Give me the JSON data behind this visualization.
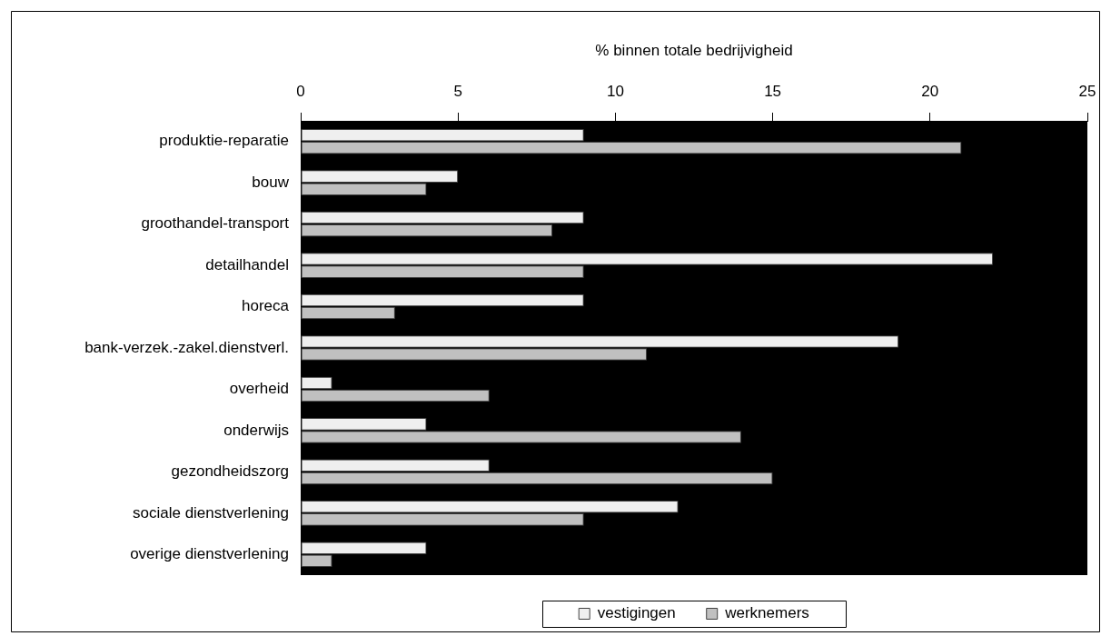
{
  "chart_data": {
    "type": "bar",
    "orientation": "horizontal",
    "xlabel": "% binnen totale bedrijvigheid",
    "categories": [
      "produktie-reparatie",
      "bouw",
      "groothandel-transport",
      "detailhandel",
      "horeca",
      "bank-verzek.-zakel.dienstverl.",
      "overheid",
      "onderwijs",
      "gezondheidszorg",
      "sociale dienstverlening",
      "overige dienstverlening"
    ],
    "series": [
      {
        "name": "vestigingen",
        "color": "#efefef",
        "values": [
          9,
          5,
          9,
          22,
          9,
          19,
          1,
          4,
          6,
          12,
          4
        ]
      },
      {
        "name": "werknemers",
        "color": "#c0c0c0",
        "values": [
          21,
          4,
          8,
          9,
          3,
          11,
          6,
          14,
          15,
          9,
          1
        ]
      }
    ],
    "xlim": [
      0,
      25
    ],
    "xticks": [
      0,
      5,
      10,
      15,
      20,
      25
    ],
    "legend": "bottom",
    "grid": false
  }
}
